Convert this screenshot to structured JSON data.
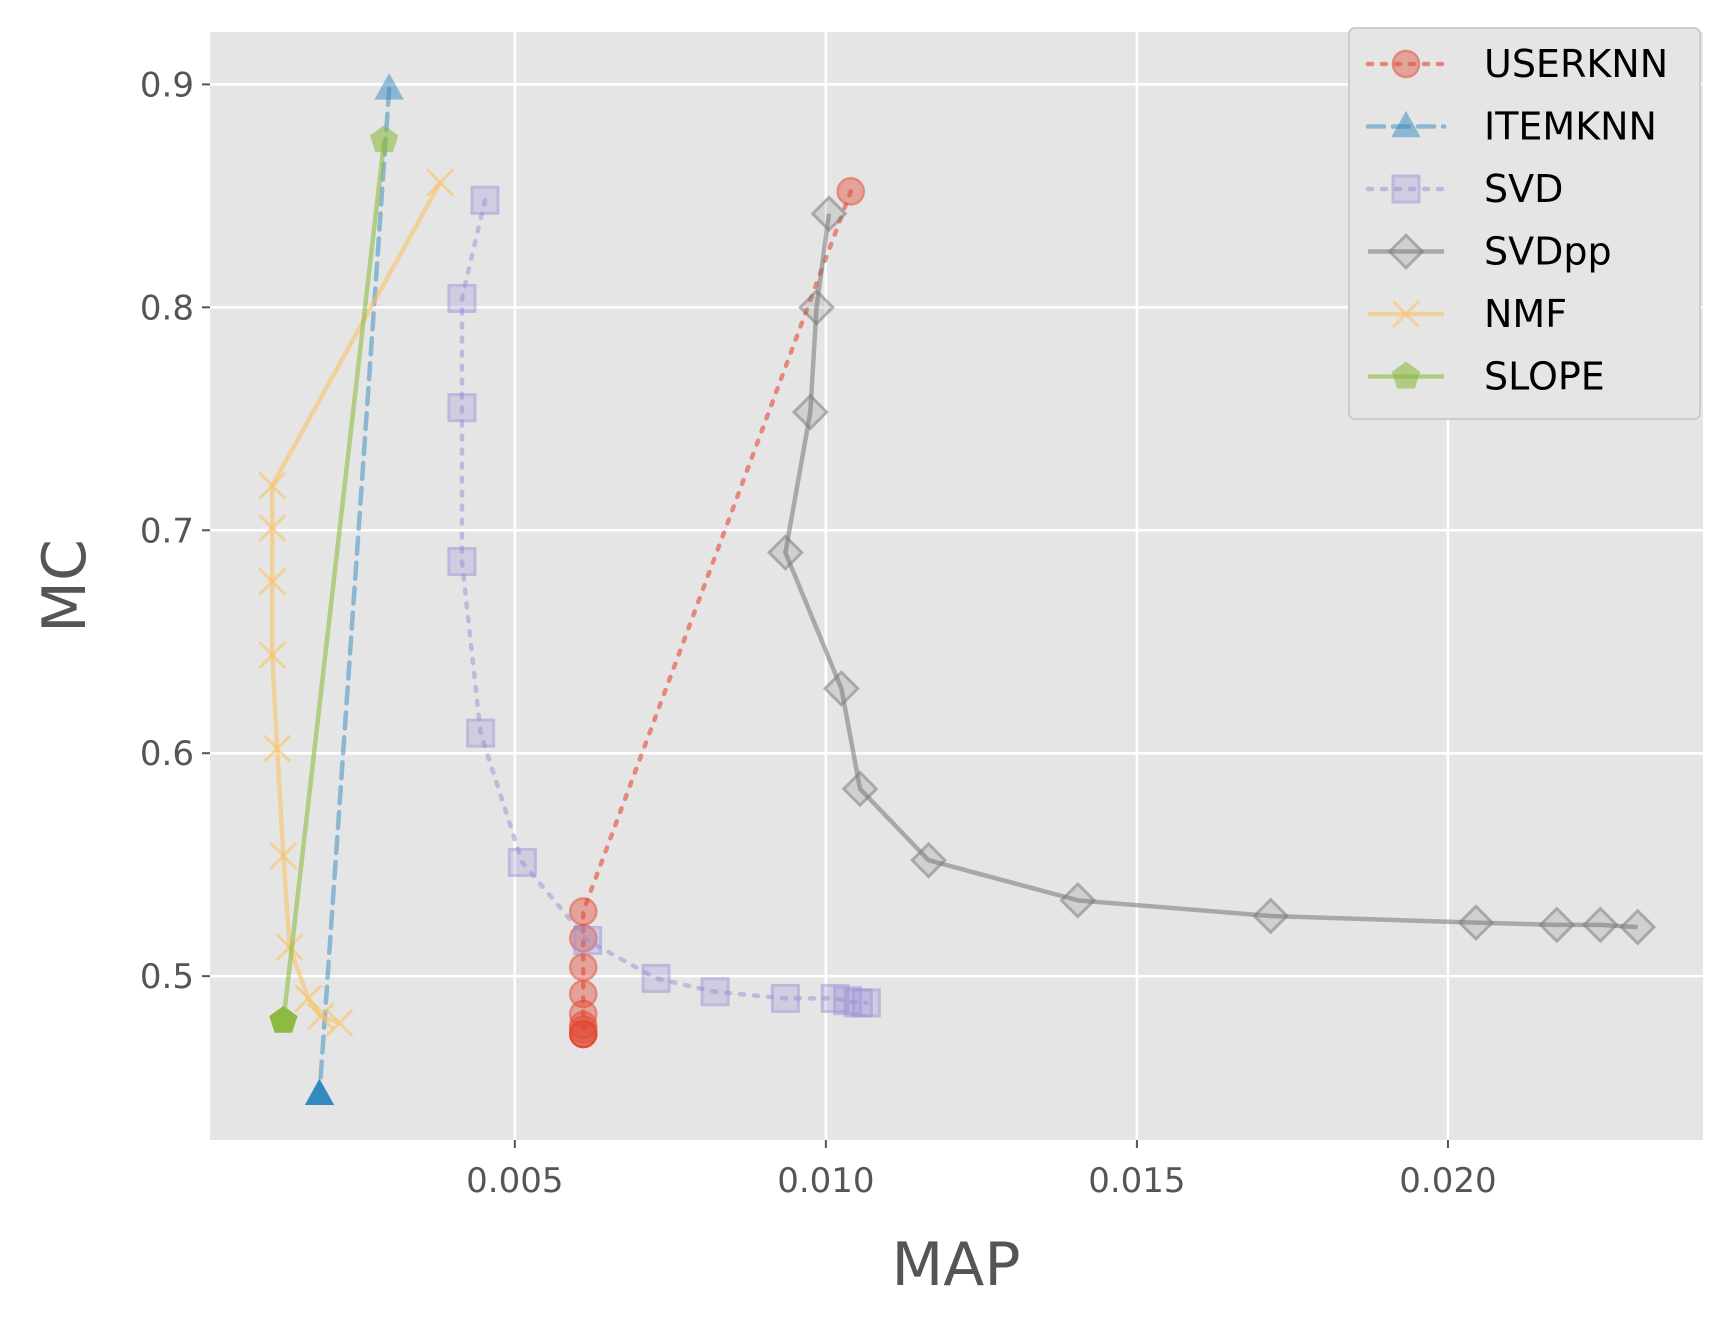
{
  "chart_data": {
    "type": "line",
    "xlabel": "MAP",
    "ylabel": "MC",
    "xlim": [
      0.0001,
      0.0241
    ],
    "ylim": [
      0.4265,
      0.9235
    ],
    "xticks": [
      0.005,
      0.01,
      0.015,
      0.02
    ],
    "xtick_labels": [
      "0.005",
      "0.010",
      "0.015",
      "0.020"
    ],
    "yticks": [
      0.5,
      0.6,
      0.7,
      0.8,
      0.9
    ],
    "ytick_labels": [
      "0.5",
      "0.6",
      "0.7",
      "0.8",
      "0.9"
    ],
    "grid": true,
    "legend_position": "top-right",
    "series": [
      {
        "name": "USERKNN",
        "color": "#E24A33",
        "linestyle": "dotted",
        "marker": "circle",
        "x": [
          0.0104,
          0.0061,
          0.0061,
          0.0061,
          0.0061,
          0.0061,
          0.0061,
          0.0061,
          0.0061
        ],
        "y": [
          0.852,
          0.529,
          0.517,
          0.504,
          0.492,
          0.483,
          0.478,
          0.476,
          0.474
        ]
      },
      {
        "name": "ITEMKNN",
        "color": "#348ABD",
        "linestyle": "dashed",
        "marker": "triangle",
        "x": [
          0.00298,
          0.00186
        ],
        "y": [
          0.898,
          0.447
        ]
      },
      {
        "name": "SVD",
        "color": "#988ED5",
        "linestyle": "dotted",
        "marker": "square",
        "x": [
          0.00452,
          0.00415,
          0.00415,
          0.00415,
          0.00445,
          0.00512,
          0.00617,
          0.00727,
          0.00822,
          0.00935,
          0.01015,
          0.01035,
          0.01052,
          0.01065
        ],
        "y": [
          0.848,
          0.804,
          0.755,
          0.686,
          0.609,
          0.551,
          0.516,
          0.499,
          0.493,
          0.49,
          0.49,
          0.489,
          0.488,
          0.488
        ]
      },
      {
        "name": "SVDpp",
        "color": "#777777",
        "linestyle": "solid",
        "marker": "diamond",
        "x": [
          0.01005,
          0.00985,
          0.00975,
          0.00935,
          0.01025,
          0.01055,
          0.01165,
          0.01405,
          0.01715,
          0.02045,
          0.02175,
          0.02245,
          0.02305
        ],
        "y": [
          0.842,
          0.8,
          0.753,
          0.69,
          0.629,
          0.584,
          0.552,
          0.534,
          0.527,
          0.524,
          0.523,
          0.523,
          0.522
        ]
      },
      {
        "name": "NMF",
        "color": "#FBC15E",
        "linestyle": "solid",
        "marker": "x",
        "x": [
          0.0038,
          0.0011,
          0.0011,
          0.0011,
          0.0011,
          0.00118,
          0.00128,
          0.00138,
          0.00168,
          0.00188,
          0.00218
        ],
        "y": [
          0.856,
          0.72,
          0.701,
          0.677,
          0.644,
          0.602,
          0.554,
          0.513,
          0.49,
          0.482,
          0.479
        ]
      },
      {
        "name": "SLOPE",
        "color": "#8EBA42",
        "linestyle": "solid",
        "marker": "pentagon",
        "x": [
          0.0029,
          0.00128
        ],
        "y": [
          0.875,
          0.48
        ]
      }
    ]
  }
}
